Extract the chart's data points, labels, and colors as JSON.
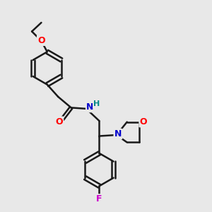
{
  "bg_color": "#e8e8e8",
  "bond_color": "#1a1a1a",
  "bond_width": 1.8,
  "atom_colors": {
    "O": "#ff0000",
    "N": "#0000cc",
    "F": "#cc00cc",
    "H": "#008888",
    "C": "#1a1a1a"
  },
  "font_size": 9
}
